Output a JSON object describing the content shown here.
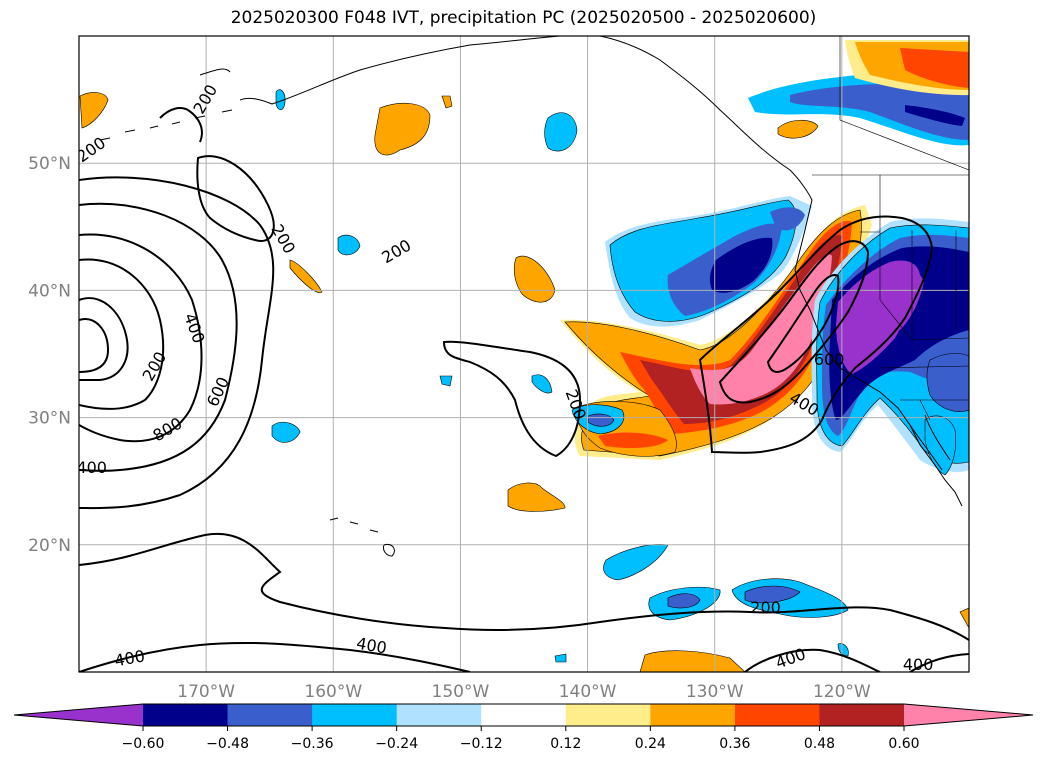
{
  "title": "2025020300 F048 IVT, precipitation PC (2025020500 - 2025020600)",
  "map": {
    "lat_labels": [
      {
        "text": "50°N",
        "lat": 50
      },
      {
        "text": "40°N",
        "lat": 40
      },
      {
        "text": "30°N",
        "lat": 30
      },
      {
        "text": "20°N",
        "lat": 20
      }
    ],
    "lon_labels": [
      {
        "text": "170°W",
        "lon": -170
      },
      {
        "text": "160°W",
        "lon": -160
      },
      {
        "text": "150°W",
        "lon": -150
      },
      {
        "text": "140°W",
        "lon": -140
      },
      {
        "text": "130°W",
        "lon": -130
      },
      {
        "text": "120°W",
        "lon": -120
      }
    ],
    "extent": {
      "lon_min": -180,
      "lon_max": -110,
      "lat_min": 10,
      "lat_max": 60
    },
    "gridlines": true,
    "contour_labels": [
      {
        "text": "200",
        "lon": -179,
        "lat": 51,
        "rot": -35
      },
      {
        "text": "200",
        "lon": -170,
        "lat": 55,
        "rot": -60
      },
      {
        "text": "200",
        "lon": -164,
        "lat": 44,
        "rot": 60
      },
      {
        "text": "200",
        "lon": -155,
        "lat": 43,
        "rot": -30
      },
      {
        "text": "400",
        "lon": -171,
        "lat": 37,
        "rot": 70
      },
      {
        "text": "200",
        "lon": -174,
        "lat": 34,
        "rot": -60
      },
      {
        "text": "600",
        "lon": -169,
        "lat": 32,
        "rot": -65
      },
      {
        "text": "800",
        "lon": -173,
        "lat": 29,
        "rot": -30
      },
      {
        "text": "400",
        "lon": -179,
        "lat": 26,
        "rot": 0
      },
      {
        "text": "200",
        "lon": -141,
        "lat": 31,
        "rot": 70
      },
      {
        "text": "600",
        "lon": -121,
        "lat": 34.5,
        "rot": 0
      },
      {
        "text": "400",
        "lon": -123,
        "lat": 31,
        "rot": 30
      },
      {
        "text": "200",
        "lon": -126,
        "lat": 15,
        "rot": 0
      },
      {
        "text": "400",
        "lon": -176,
        "lat": 11,
        "rot": -10
      },
      {
        "text": "400",
        "lon": -157,
        "lat": 12,
        "rot": 10
      },
      {
        "text": "400",
        "lon": -124,
        "lat": 11,
        "rot": -20
      },
      {
        "text": "400",
        "lon": -114,
        "lat": 10.5,
        "rot": 0
      }
    ]
  },
  "colorbar": {
    "ticks": [
      "−0.60",
      "−0.48",
      "−0.36",
      "−0.24",
      "−0.12",
      "0.12",
      "0.24",
      "0.36",
      "0.48",
      "0.60"
    ],
    "colors": [
      "#9932cc",
      "#00008b",
      "#3a5fcd",
      "#00bfff",
      "#b0e2ff",
      "#ffffff",
      "#ffec8b",
      "#ffa500",
      "#ff4500",
      "#b22222",
      "#ff82ab"
    ]
  },
  "fill_colors": {
    "neg_light": "#b0e2ff",
    "neg_cyan": "#00bfff",
    "neg_blue": "#3a5fcd",
    "neg_navy": "#00008b",
    "neg_purple": "#9932cc",
    "pos_yellow": "#ffec8b",
    "pos_orange": "#ffa500",
    "pos_red": "#ff4500",
    "pos_dred": "#b22222",
    "pos_pink": "#ff82ab"
  }
}
